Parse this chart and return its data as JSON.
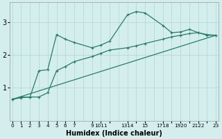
{
  "xlabel": "Humidex (Indice chaleur)",
  "background_color": "#d4eeee",
  "grid_color": "#b8d8d8",
  "line_color": "#2a7a6a",
  "ylim": [
    0,
    3.6
  ],
  "yticks": [
    1,
    2,
    3
  ],
  "xlim": [
    -0.3,
    23.3
  ],
  "series1_x": [
    0,
    1,
    2,
    3,
    4,
    5,
    6,
    7,
    9,
    10,
    11,
    13,
    14,
    15,
    17,
    18,
    19,
    20,
    21,
    22,
    23
  ],
  "series1_y": [
    0.65,
    0.72,
    0.72,
    1.52,
    1.55,
    2.62,
    2.48,
    2.38,
    2.22,
    2.3,
    2.42,
    3.22,
    3.32,
    3.28,
    2.9,
    2.68,
    2.7,
    2.78,
    2.68,
    2.62,
    2.6
  ],
  "series2_x": [
    0,
    1,
    2,
    3,
    4,
    5,
    6,
    7,
    9,
    10,
    11,
    13,
    14,
    15,
    17,
    18,
    19,
    20,
    21,
    22,
    23
  ],
  "series2_y": [
    0.65,
    0.7,
    0.72,
    0.72,
    0.85,
    1.52,
    1.65,
    1.8,
    1.95,
    2.05,
    2.15,
    2.22,
    2.28,
    2.35,
    2.48,
    2.55,
    2.6,
    2.65,
    2.68,
    2.6,
    2.6
  ],
  "series3_x": [
    0,
    23
  ],
  "series3_y": [
    0.65,
    2.6
  ],
  "xtick_positions": [
    0,
    1,
    2,
    3,
    4,
    5,
    6,
    7,
    9,
    10,
    11,
    13,
    14,
    15,
    17,
    18,
    19,
    20,
    21,
    22,
    23
  ],
  "xtick_labels": [
    "0",
    "1",
    "2",
    "3",
    "4",
    "5",
    "6",
    "7",
    "9",
    "1011",
    "",
    "1314",
    "",
    "15",
    "1718",
    "",
    "1920",
    "",
    "2122",
    "",
    "23"
  ]
}
